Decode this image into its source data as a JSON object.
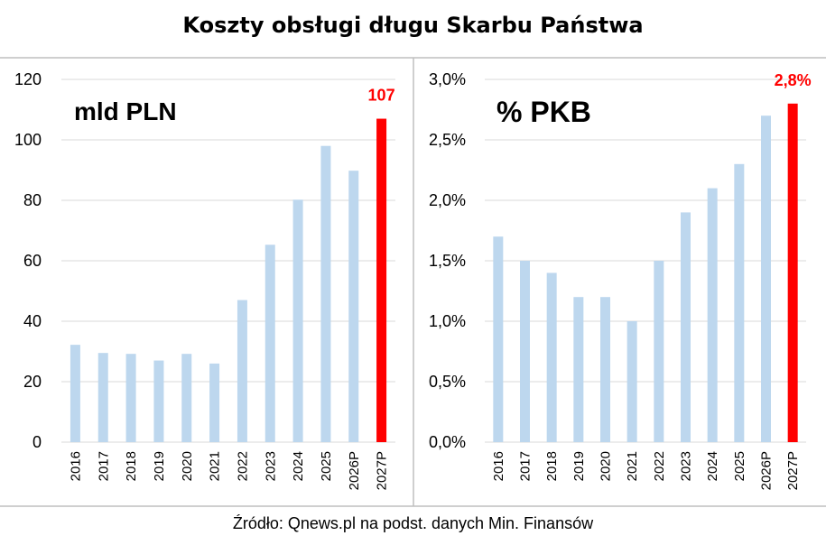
{
  "title": "Koszty obsługi długu Skarbu Państwa",
  "source": "Źródło: Qnews.pl na podst. danych Min. Finansów",
  "colors": {
    "bar": "#bdd7ee",
    "highlight": "#ff0000",
    "grid": "#d9d9d9",
    "divider": "#bfbfbf"
  },
  "chart_data": [
    {
      "type": "bar",
      "title": "mld PLN",
      "categories": [
        "2016",
        "2017",
        "2018",
        "2019",
        "2020",
        "2021",
        "2022",
        "2023",
        "2024",
        "2025",
        "2026P",
        "2027P"
      ],
      "values": [
        32.2,
        29.5,
        29.2,
        27.0,
        29.2,
        26.0,
        47.0,
        65.3,
        80.2,
        98.0,
        89.8,
        107
      ],
      "highlight_index": 11,
      "highlight_label": "107",
      "ylim": [
        0,
        120
      ],
      "yticks": [
        0,
        20,
        40,
        60,
        80,
        100,
        120
      ],
      "ytick_labels": [
        "0",
        "20",
        "40",
        "60",
        "80",
        "100",
        "120"
      ],
      "grid": true
    },
    {
      "type": "bar",
      "title": "% PKB",
      "categories": [
        "2016",
        "2017",
        "2018",
        "2019",
        "2020",
        "2021",
        "2022",
        "2023",
        "2024",
        "2025",
        "2026P",
        "2027P"
      ],
      "values": [
        1.7,
        1.5,
        1.4,
        1.2,
        1.2,
        1.0,
        1.5,
        1.9,
        2.1,
        2.3,
        2.7,
        2.8
      ],
      "highlight_index": 11,
      "highlight_label": "2,8%",
      "ylim": [
        0,
        3.0
      ],
      "yticks": [
        0,
        0.5,
        1.0,
        1.5,
        2.0,
        2.5,
        3.0
      ],
      "ytick_labels": [
        "0,0%",
        "0,5%",
        "1,0%",
        "1,5%",
        "2,0%",
        "2,5%",
        "3,0%"
      ],
      "grid": true
    }
  ]
}
